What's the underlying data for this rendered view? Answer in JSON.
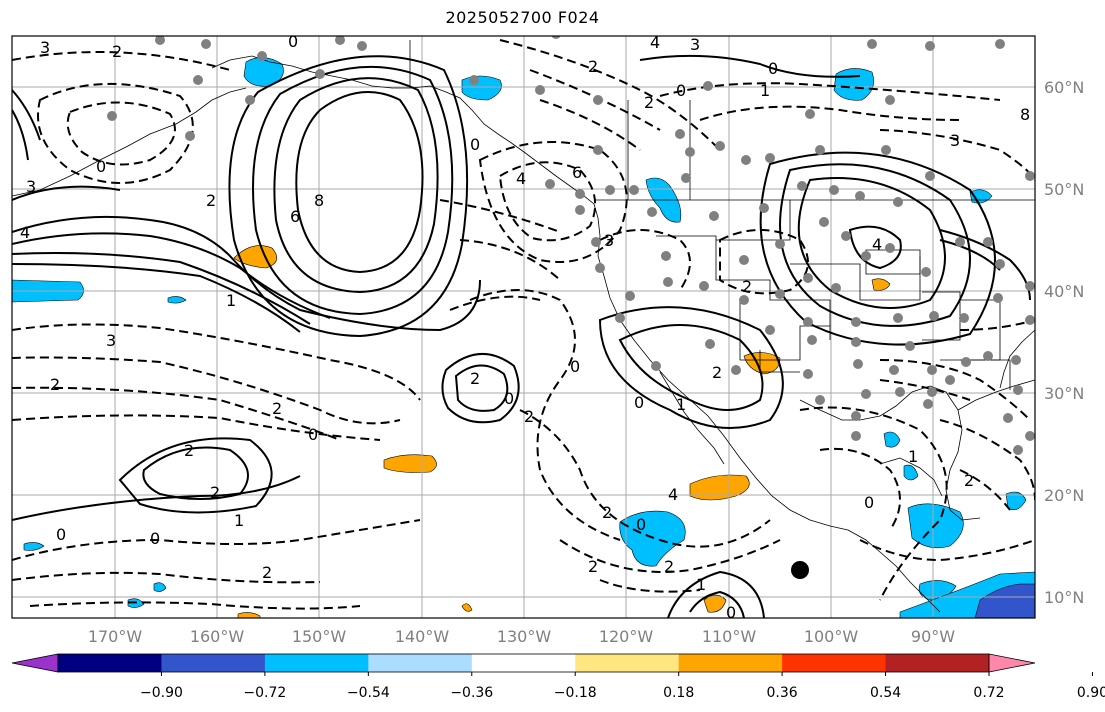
{
  "title": "2025052700 F024",
  "latitude_labels": [
    "60°N",
    "50°N",
    "40°N",
    "30°N",
    "20°N",
    "10°N"
  ],
  "longitude_labels": [
    "170°W",
    "160°W",
    "150°W",
    "140°W",
    "130°W",
    "120°W",
    "110°W",
    "100°W",
    "90°W"
  ],
  "colorbar": {
    "ticks": [
      "−0.90",
      "−0.72",
      "−0.54",
      "−0.36",
      "−0.18",
      "0.18",
      "0.36",
      "0.54",
      "0.72",
      "0.90"
    ],
    "colors": [
      "#9933cc",
      "#000080",
      "#3355cc",
      "#00bfff",
      "#aaddff",
      "#ffffff",
      "#ffe680",
      "#ffa500",
      "#ff3300",
      "#b22222",
      "#ff88aa"
    ]
  },
  "contour_labels": [
    {
      "id": "l1",
      "text": "3"
    },
    {
      "id": "l2",
      "text": "2"
    },
    {
      "id": "l3",
      "text": "0"
    },
    {
      "id": "l4",
      "text": "4"
    },
    {
      "id": "l5",
      "text": "3"
    },
    {
      "id": "l6",
      "text": "2"
    },
    {
      "id": "l7",
      "text": "0"
    },
    {
      "id": "l8",
      "text": "1"
    },
    {
      "id": "l9",
      "text": "2"
    },
    {
      "id": "l10",
      "text": "0"
    },
    {
      "id": "l11",
      "text": "3"
    },
    {
      "id": "l12",
      "text": "4"
    },
    {
      "id": "l13",
      "text": "6"
    },
    {
      "id": "l14",
      "text": "8"
    },
    {
      "id": "l15",
      "text": "2"
    },
    {
      "id": "l16",
      "text": "4"
    },
    {
      "id": "l17",
      "text": "1"
    },
    {
      "id": "l18",
      "text": "3"
    },
    {
      "id": "l19",
      "text": "2"
    },
    {
      "id": "l20",
      "text": "2"
    },
    {
      "id": "l21",
      "text": "0"
    },
    {
      "id": "l22",
      "text": "2"
    },
    {
      "id": "l23",
      "text": "0"
    },
    {
      "id": "l24",
      "text": "2"
    },
    {
      "id": "l25",
      "text": "1"
    },
    {
      "id": "l26",
      "text": "0"
    },
    {
      "id": "l27",
      "text": "2"
    },
    {
      "id": "l28",
      "text": "3"
    },
    {
      "id": "l29",
      "text": "0"
    },
    {
      "id": "l30",
      "text": "6"
    },
    {
      "id": "l31",
      "text": "4"
    },
    {
      "id": "l32",
      "text": "0"
    },
    {
      "id": "l33",
      "text": "2"
    },
    {
      "id": "l34",
      "text": "0"
    },
    {
      "id": "l35",
      "text": "2"
    },
    {
      "id": "l36",
      "text": "2"
    },
    {
      "id": "l37",
      "text": "1"
    },
    {
      "id": "l38",
      "text": "2"
    },
    {
      "id": "l39",
      "text": "0"
    },
    {
      "id": "l40",
      "text": "1"
    },
    {
      "id": "l41",
      "text": "0"
    },
    {
      "id": "l42",
      "text": "2"
    },
    {
      "id": "l43",
      "text": "4"
    },
    {
      "id": "l44",
      "text": "0"
    },
    {
      "id": "l45",
      "text": "3"
    },
    {
      "id": "l46",
      "text": "2"
    },
    {
      "id": "l47",
      "text": "2"
    },
    {
      "id": "l48",
      "text": "1"
    },
    {
      "id": "l49",
      "text": "0"
    },
    {
      "id": "l50",
      "text": "2"
    },
    {
      "id": "l51",
      "text": "0"
    },
    {
      "id": "l52",
      "text": "8"
    }
  ]
}
